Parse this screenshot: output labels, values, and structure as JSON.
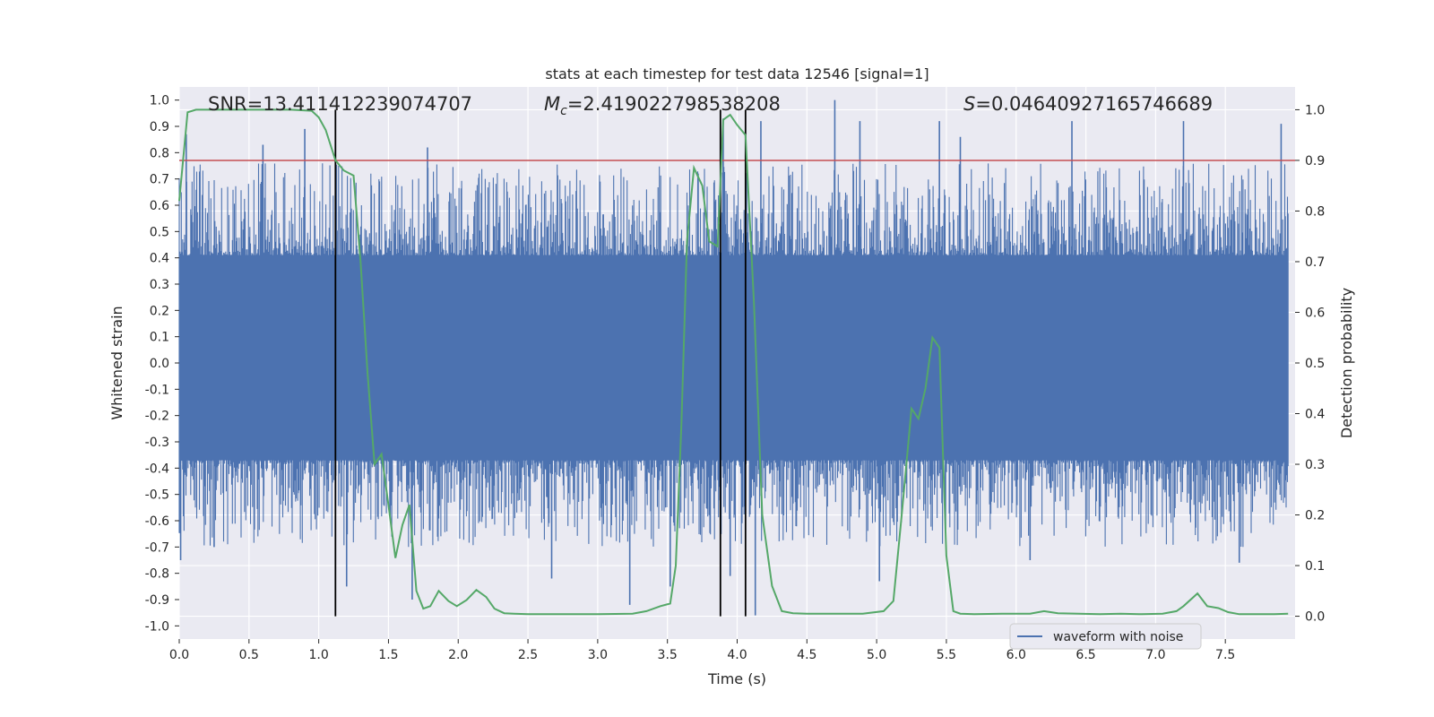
{
  "chart_data": {
    "type": "line",
    "title": "stats at each timestep for test data 12546 [signal=1]",
    "xlabel": "Time (s)",
    "ylabel": "Whitened strain",
    "y2label": "Detection probability",
    "xlim": [
      0.0,
      8.0
    ],
    "ylim": [
      -1.05,
      1.05
    ],
    "y2lim": [
      -0.045,
      1.045
    ],
    "xticks": [
      "0.0",
      "0.5",
      "1.0",
      "1.5",
      "2.0",
      "2.5",
      "3.0",
      "3.5",
      "4.0",
      "4.5",
      "5.0",
      "5.5",
      "6.0",
      "6.5",
      "7.0",
      "7.5"
    ],
    "yticks": [
      "1.0",
      "0.9",
      "0.8",
      "0.7",
      "0.6",
      "0.5",
      "0.4",
      "0.3",
      "0.2",
      "0.1",
      "0.0",
      "-0.1",
      "-0.2",
      "-0.3",
      "-0.4",
      "-0.5",
      "-0.6",
      "-0.7",
      "-0.8",
      "-0.9",
      "-1.0"
    ],
    "y2ticks": [
      "1.0",
      "0.9",
      "0.8",
      "0.7",
      "0.6",
      "0.5",
      "0.4",
      "0.3",
      "0.2",
      "0.1",
      "0.0"
    ],
    "legend": {
      "label": "waveform with noise",
      "placement": "lower-right"
    },
    "colors": {
      "waveform": "#4c72b0",
      "probability": "#55a868",
      "threshold": "#c44e52",
      "marker": "#000000",
      "background": "#eaeaf2",
      "grid": "#ffffff"
    },
    "annotations": {
      "snr": "SNR=13.411412239074707",
      "mc_symbol": "M",
      "mc_sub": "c",
      "mc_value": "=2.419022798538208",
      "s_symbol": "S",
      "s_value": "=0.04640927165746689"
    },
    "threshold_probability": 0.9,
    "event_markers_s": [
      1.12,
      3.88,
      4.06
    ],
    "waveform_envelope": {
      "description_values": "approximate whitened strain noise band in strain units",
      "core_band": [
        -0.37,
        0.41
      ],
      "upper_spikes": [
        [
          0.05,
          0.87
        ],
        [
          0.6,
          0.83
        ],
        [
          0.9,
          0.89
        ],
        [
          1.78,
          0.82
        ],
        [
          3.9,
          0.93
        ],
        [
          4.17,
          0.92
        ],
        [
          4.7,
          1.0
        ],
        [
          4.88,
          0.92
        ],
        [
          5.45,
          0.92
        ],
        [
          5.6,
          0.86
        ],
        [
          6.4,
          0.92
        ],
        [
          7.2,
          0.92
        ],
        [
          7.9,
          0.91
        ]
      ],
      "lower_spikes": [
        [
          0.01,
          -0.75
        ],
        [
          0.25,
          -0.7
        ],
        [
          1.2,
          -0.85
        ],
        [
          1.67,
          -0.9
        ],
        [
          2.67,
          -0.82
        ],
        [
          3.23,
          -0.92
        ],
        [
          3.52,
          -0.85
        ],
        [
          3.95,
          -0.81
        ],
        [
          4.13,
          -0.96
        ],
        [
          5.02,
          -0.83
        ],
        [
          6.1,
          -0.75
        ],
        [
          7.6,
          -0.76
        ]
      ]
    },
    "series": [
      {
        "name": "Detection probability",
        "x": [
          0.0,
          0.06,
          0.12,
          0.2,
          0.3,
          0.45,
          0.6,
          0.8,
          0.95,
          1.0,
          1.05,
          1.12,
          1.18,
          1.25,
          1.3,
          1.35,
          1.4,
          1.45,
          1.5,
          1.55,
          1.6,
          1.65,
          1.7,
          1.75,
          1.8,
          1.86,
          1.93,
          1.99,
          2.06,
          2.13,
          2.2,
          2.26,
          2.33,
          2.4,
          2.5,
          2.6,
          2.75,
          3.0,
          3.25,
          3.35,
          3.45,
          3.52,
          3.56,
          3.6,
          3.64,
          3.69,
          3.75,
          3.8,
          3.86,
          3.9,
          3.95,
          4.0,
          4.06,
          4.12,
          4.18,
          4.25,
          4.32,
          4.4,
          4.5,
          4.7,
          4.9,
          5.05,
          5.12,
          5.18,
          5.25,
          5.3,
          5.35,
          5.4,
          5.45,
          5.5,
          5.55,
          5.6,
          5.7,
          5.9,
          6.1,
          6.2,
          6.3,
          6.45,
          6.6,
          6.75,
          6.9,
          7.05,
          7.15,
          7.2,
          7.3,
          7.37,
          7.45,
          7.52,
          7.6,
          7.7,
          7.85,
          7.95
        ],
        "values": [
          0.82,
          0.995,
          1.0,
          1.0,
          1.0,
          1.0,
          1.0,
          1.0,
          0.998,
          0.985,
          0.96,
          0.9,
          0.88,
          0.87,
          0.7,
          0.48,
          0.3,
          0.32,
          0.22,
          0.115,
          0.18,
          0.22,
          0.05,
          0.015,
          0.02,
          0.05,
          0.03,
          0.02,
          0.032,
          0.052,
          0.038,
          0.015,
          0.006,
          0.005,
          0.004,
          0.004,
          0.004,
          0.004,
          0.005,
          0.01,
          0.02,
          0.025,
          0.1,
          0.38,
          0.74,
          0.885,
          0.85,
          0.74,
          0.73,
          0.98,
          0.99,
          0.97,
          0.95,
          0.62,
          0.2,
          0.06,
          0.01,
          0.006,
          0.005,
          0.005,
          0.005,
          0.01,
          0.03,
          0.2,
          0.41,
          0.39,
          0.45,
          0.55,
          0.53,
          0.12,
          0.01,
          0.005,
          0.004,
          0.005,
          0.005,
          0.01,
          0.006,
          0.005,
          0.004,
          0.005,
          0.004,
          0.005,
          0.01,
          0.02,
          0.045,
          0.02,
          0.016,
          0.008,
          0.004,
          0.004,
          0.004,
          0.005
        ]
      }
    ]
  }
}
